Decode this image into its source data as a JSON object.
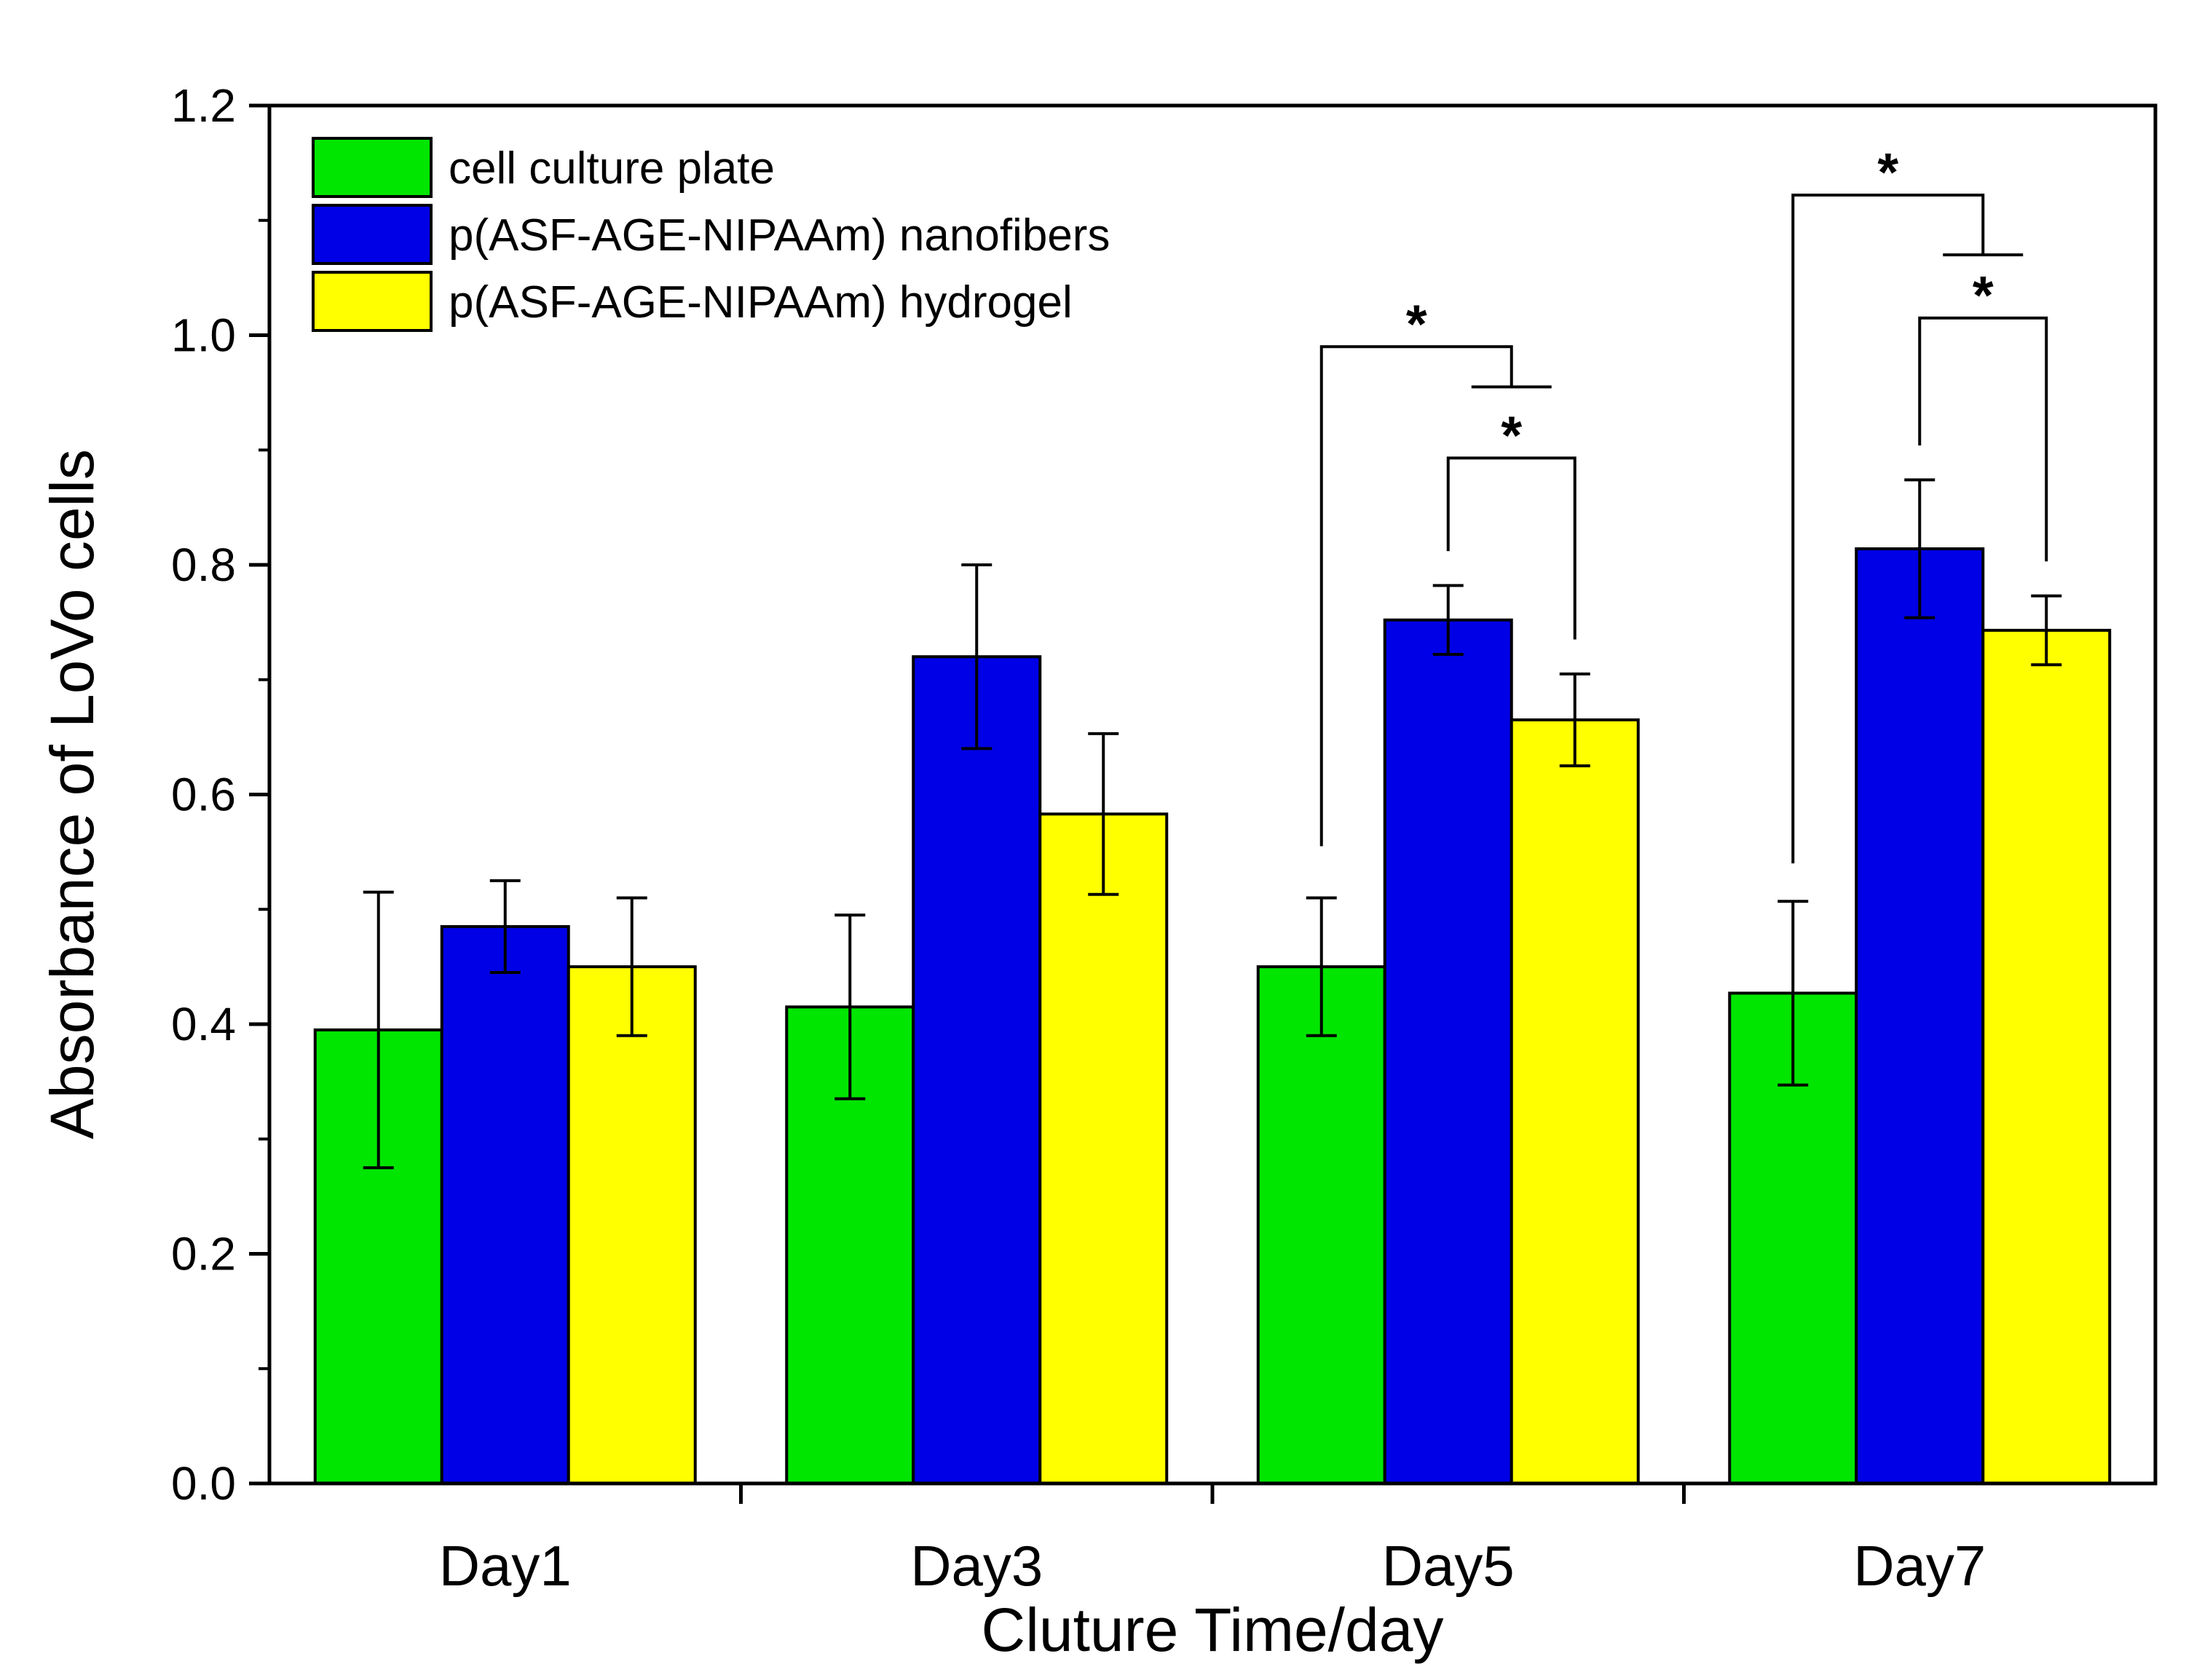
{
  "chart_data": {
    "type": "bar",
    "title": "",
    "xlabel": "Cluture Time/day",
    "ylabel": "Absorbance of LoVo cells",
    "ylim": [
      0.0,
      1.2
    ],
    "y_ticks": [
      "0.0",
      "0.2",
      "0.4",
      "0.6",
      "0.8",
      "1.0",
      "1.2"
    ],
    "categories": [
      "Day1",
      "Day3",
      "Day5",
      "Day7"
    ],
    "legend_position": "top-left",
    "series": [
      {
        "name": "cell culture plate",
        "color": "#00e600",
        "values": [
          0.395,
          0.415,
          0.45,
          0.427
        ],
        "errors": [
          0.12,
          0.08,
          0.06,
          0.08
        ]
      },
      {
        "name": "p(ASF-AGE-NIPAAm) nanofibers",
        "color": "#0000e6",
        "values": [
          0.485,
          0.72,
          0.752,
          0.814
        ],
        "errors": [
          0.04,
          0.08,
          0.03,
          0.06
        ]
      },
      {
        "name": "p(ASF-AGE-NIPAAm) hydrogel",
        "color": "#ffff00",
        "values": [
          0.45,
          0.583,
          0.665,
          0.743
        ],
        "errors": [
          0.06,
          0.07,
          0.04,
          0.03
        ]
      }
    ],
    "significance": [
      {
        "category": "Day5",
        "from": "cell culture plate",
        "to": "nanofibers vs hydrogel bracket",
        "label": "*"
      },
      {
        "category": "Day5",
        "from": "p(ASF-AGE-NIPAAm) nanofibers",
        "to": "p(ASF-AGE-NIPAAm) hydrogel",
        "label": "*"
      },
      {
        "category": "Day7",
        "from": "cell culture plate",
        "to": "nanofibers vs hydrogel bracket",
        "label": "*"
      },
      {
        "category": "Day7",
        "from": "p(ASF-AGE-NIPAAm) nanofibers",
        "to": "p(ASF-AGE-NIPAAm) hydrogel",
        "label": "*"
      }
    ]
  }
}
